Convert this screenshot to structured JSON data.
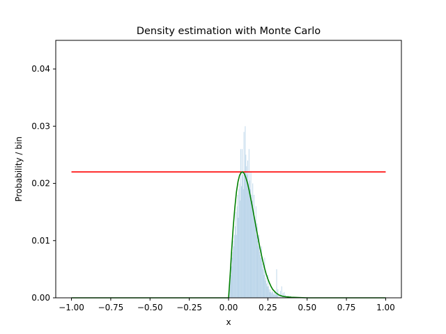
{
  "chart_data": {
    "type": "histogram",
    "title": "Density estimation with Monte Carlo",
    "xlabel": "x",
    "ylabel": "Probability / bin",
    "xlim": [
      -1.1,
      1.1
    ],
    "ylim": [
      0.0,
      0.045
    ],
    "x_ticks": [
      -1.0,
      -0.75,
      -0.5,
      -0.25,
      0.0,
      0.25,
      0.5,
      0.75,
      1.0
    ],
    "x_tick_labels": [
      "−1.00",
      "−0.75",
      "−0.50",
      "−0.25",
      "0.00",
      "0.25",
      "0.50",
      "0.75",
      "1.00"
    ],
    "y_ticks": [
      0.0,
      0.01,
      0.02,
      0.03,
      0.04
    ],
    "y_tick_labels": [
      "0.00",
      "0.01",
      "0.02",
      "0.03",
      "0.04"
    ],
    "grid": false,
    "colors": {
      "bars": "#b9d4e9",
      "proposal": "#ff0000",
      "target": "#008000",
      "axes": "#000000"
    },
    "histogram": {
      "bin_edges_range": [
        -1.0,
        1.0
      ],
      "bin_width": 0.004,
      "bins": [
        [
          0.004,
          0.0015
        ],
        [
          0.008,
          0.003
        ],
        [
          0.012,
          0.004
        ],
        [
          0.016,
          0.0055
        ],
        [
          0.02,
          0.007
        ],
        [
          0.024,
          0.008
        ],
        [
          0.028,
          0.01
        ],
        [
          0.032,
          0.009
        ],
        [
          0.036,
          0.011
        ],
        [
          0.04,
          0.0125
        ],
        [
          0.044,
          0.015
        ],
        [
          0.048,
          0.011
        ],
        [
          0.052,
          0.016
        ],
        [
          0.056,
          0.018
        ],
        [
          0.06,
          0.014
        ],
        [
          0.064,
          0.019
        ],
        [
          0.068,
          0.02
        ],
        [
          0.072,
          0.017
        ],
        [
          0.076,
          0.026
        ],
        [
          0.08,
          0.0195
        ],
        [
          0.084,
          0.026
        ],
        [
          0.088,
          0.0215
        ],
        [
          0.092,
          0.019
        ],
        [
          0.096,
          0.029
        ],
        [
          0.1,
          0.022
        ],
        [
          0.104,
          0.03
        ],
        [
          0.108,
          0.025
        ],
        [
          0.112,
          0.023
        ],
        [
          0.116,
          0.0215
        ],
        [
          0.12,
          0.024
        ],
        [
          0.124,
          0.02
        ],
        [
          0.128,
          0.026
        ],
        [
          0.132,
          0.0205
        ],
        [
          0.136,
          0.019
        ],
        [
          0.14,
          0.022
        ],
        [
          0.144,
          0.018
        ],
        [
          0.148,
          0.017
        ],
        [
          0.152,
          0.02
        ],
        [
          0.156,
          0.015
        ],
        [
          0.16,
          0.018
        ],
        [
          0.164,
          0.014
        ],
        [
          0.168,
          0.013
        ],
        [
          0.172,
          0.016
        ],
        [
          0.176,
          0.011
        ],
        [
          0.18,
          0.013
        ],
        [
          0.184,
          0.01
        ],
        [
          0.188,
          0.009
        ],
        [
          0.192,
          0.011
        ],
        [
          0.196,
          0.008
        ],
        [
          0.2,
          0.0075
        ],
        [
          0.204,
          0.007
        ],
        [
          0.208,
          0.009
        ],
        [
          0.212,
          0.006
        ],
        [
          0.216,
          0.005
        ],
        [
          0.22,
          0.0055
        ],
        [
          0.224,
          0.004
        ],
        [
          0.228,
          0.007
        ],
        [
          0.232,
          0.003
        ],
        [
          0.236,
          0.0035
        ],
        [
          0.24,
          0.0025
        ],
        [
          0.244,
          0.002
        ],
        [
          0.248,
          0.004
        ],
        [
          0.252,
          0.002
        ],
        [
          0.256,
          0.0015
        ],
        [
          0.26,
          0.001
        ],
        [
          0.264,
          0.0015
        ],
        [
          0.268,
          0.001
        ],
        [
          0.272,
          0.0008
        ],
        [
          0.276,
          0.0012
        ],
        [
          0.28,
          0.001
        ],
        [
          0.284,
          0.0006
        ],
        [
          0.288,
          0.001
        ],
        [
          0.292,
          0.0005
        ],
        [
          0.296,
          0.001
        ],
        [
          0.3,
          0.0006
        ],
        [
          0.304,
          0.005
        ],
        [
          0.308,
          0.0008
        ],
        [
          0.312,
          0.0015
        ],
        [
          0.32,
          0.0006
        ],
        [
          0.328,
          0.0012
        ],
        [
          0.336,
          0.002
        ],
        [
          0.344,
          0.0008
        ],
        [
          0.352,
          0.001
        ],
        [
          0.36,
          0.0005
        ],
        [
          0.376,
          0.0004
        ],
        [
          0.392,
          0.0003
        ]
      ]
    },
    "series": [
      {
        "type": "line",
        "x": [
          -1.0,
          1.0
        ],
        "y": [
          0.022,
          0.022
        ]
      },
      {
        "type": "line",
        "x": [
          -1.0,
          -0.4,
          0.0,
          0.01,
          0.02,
          0.03,
          0.04,
          0.05,
          0.06,
          0.07,
          0.08,
          0.09,
          0.1,
          0.11,
          0.12,
          0.13,
          0.14,
          0.15,
          0.16,
          0.17,
          0.18,
          0.19,
          0.2,
          0.21,
          0.22,
          0.23,
          0.24,
          0.25,
          0.26,
          0.27,
          0.28,
          0.3,
          0.32,
          0.34,
          0.36,
          0.4,
          0.5,
          1.0
        ],
        "y": [
          0.0,
          0.0,
          0.0,
          0.004,
          0.0085,
          0.0125,
          0.0158,
          0.0185,
          0.0203,
          0.0214,
          0.0219,
          0.022,
          0.0217,
          0.021,
          0.0201,
          0.0189,
          0.0175,
          0.0161,
          0.0146,
          0.0131,
          0.0116,
          0.0101,
          0.0087,
          0.0074,
          0.0062,
          0.0051,
          0.0041,
          0.0033,
          0.0026,
          0.002,
          0.0015,
          0.0009,
          0.0005,
          0.0003,
          0.0002,
          0.0001,
          0.0,
          0.0
        ]
      }
    ]
  }
}
